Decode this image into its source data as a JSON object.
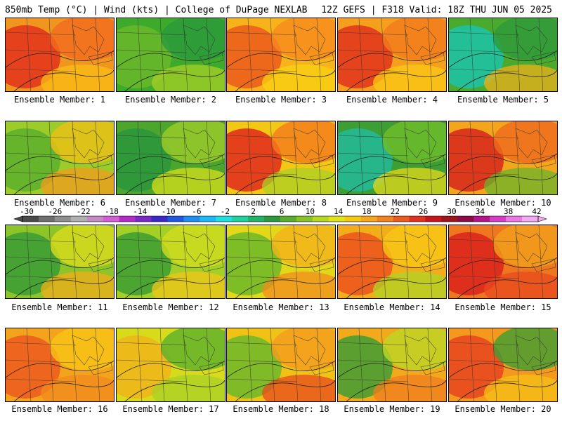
{
  "header": {
    "left": "850mb Temp (°C) | Wind (kts) | College of DuPage NEXLAB",
    "right": "12Z GEFS | F318 Valid: 18Z THU JUN 05 2025"
  },
  "members": [
    {
      "label": "Ensemble Member: 1",
      "fill": "#f0961e",
      "c1": "#e3331c",
      "c2": "#f36b1e",
      "c3": "#fbbd14"
    },
    {
      "label": "Ensemble Member: 2",
      "fill": "#3eaa2c",
      "c1": "#6ab92a",
      "c2": "#2a9a3c",
      "c3": "#a8cf26"
    },
    {
      "label": "Ensemble Member: 3",
      "fill": "#f7b31a",
      "c1": "#eb5a1c",
      "c2": "#f68a1e",
      "c3": "#fad212"
    },
    {
      "label": "Ensemble Member: 4",
      "fill": "#f4a01c",
      "c1": "#e2321c",
      "c2": "#f27a1e",
      "c3": "#fbc915"
    },
    {
      "label": "Ensemble Member: 5",
      "fill": "#4aaa2e",
      "c1": "#1cc3a8",
      "c2": "#2e9a3a",
      "c3": "#f0b01a"
    },
    {
      "label": "Ensemble Member: 6",
      "fill": "#9ccc2a",
      "c1": "#5caf2c",
      "c2": "#eebf16",
      "c3": "#f49b1e"
    },
    {
      "label": "Ensemble Member: 7",
      "fill": "#4ca62e",
      "c1": "#2a973c",
      "c2": "#9ccc28",
      "c3": "#d8df1c"
    },
    {
      "label": "Ensemble Member: 8",
      "fill": "#f2c814",
      "c1": "#e0281c",
      "c2": "#f27a1c",
      "c3": "#a9d226"
    },
    {
      "label": "Ensemble Member: 9",
      "fill": "#3d9e34",
      "c1": "#23b89a",
      "c2": "#6fbd2a",
      "c3": "#e6da1a"
    },
    {
      "label": "Ensemble Member: 10",
      "fill": "#f3a51c",
      "c1": "#d6241c",
      "c2": "#ee6a1e",
      "c3": "#6ab62a"
    },
    {
      "label": "Ensemble Member: 11",
      "fill": "#8cc42a",
      "c1": "#3a9c34",
      "c2": "#d9dc1c",
      "c3": "#f2ae1a"
    },
    {
      "label": "Ensemble Member: 12",
      "fill": "#a3cf26",
      "c1": "#3c9e32",
      "c2": "#cfdc1e",
      "c3": "#f1c618"
    },
    {
      "label": "Ensemble Member: 13",
      "fill": "#e2d81a",
      "c1": "#6db82a",
      "c2": "#f4b41a",
      "c3": "#f28c1e"
    },
    {
      "label": "Ensemble Member: 14",
      "fill": "#f2ae1a",
      "c1": "#ec541e",
      "c2": "#f7c514",
      "c3": "#b0d326"
    },
    {
      "label": "Ensemble Member: 15",
      "fill": "#ee761e",
      "c1": "#d9231c",
      "c2": "#f0a01c",
      "c3": "#e84a1e"
    },
    {
      "label": "Ensemble Member: 16",
      "fill": "#f4a41c",
      "c1": "#ec5a1e",
      "c2": "#f7c416",
      "c3": "#f28a1e"
    },
    {
      "label": "Ensemble Member: 17",
      "fill": "#d8db1c",
      "c1": "#f0b51a",
      "c2": "#5cb02c",
      "c3": "#a8d026"
    },
    {
      "label": "Ensemble Member: 18",
      "fill": "#f0c216",
      "c1": "#6cb82a",
      "c2": "#f49c1e",
      "c3": "#e84a1e"
    },
    {
      "label": "Ensemble Member: 19",
      "fill": "#f3a91c",
      "c1": "#3e9e32",
      "c2": "#bcd624",
      "c3": "#ef7d1e"
    },
    {
      "label": "Ensemble Member: 20",
      "fill": "#f4991e",
      "c1": "#e6451e",
      "c2": "#3e9e32",
      "c3": "#f6c016"
    }
  ],
  "colorbar": {
    "ticks": [
      "-30",
      "-26",
      "-22",
      "-18",
      "-14",
      "-10",
      "-6",
      "-2",
      "2",
      "6",
      "10",
      "14",
      "18",
      "22",
      "26",
      "30",
      "34",
      "38",
      "42"
    ],
    "colors": [
      "#4a4a4a",
      "#6e6e6e",
      "#8e8e8e",
      "#b0b0b0",
      "#c48ac4",
      "#d45ed4",
      "#b42cc8",
      "#7a28c8",
      "#3c28c8",
      "#2058e0",
      "#1e8cf0",
      "#1eb8f8",
      "#1ee0e0",
      "#1ed2a0",
      "#20b464",
      "#2c9a3c",
      "#58ae2c",
      "#86c228",
      "#b6d624",
      "#e2e21c",
      "#f6c814",
      "#f6a61c",
      "#f2821e",
      "#ec5a1e",
      "#e0321c",
      "#c8141c",
      "#a0141c",
      "#8c0a46",
      "#b4148c",
      "#d83cc8",
      "#ec78e8",
      "#f4a8f4"
    ]
  }
}
